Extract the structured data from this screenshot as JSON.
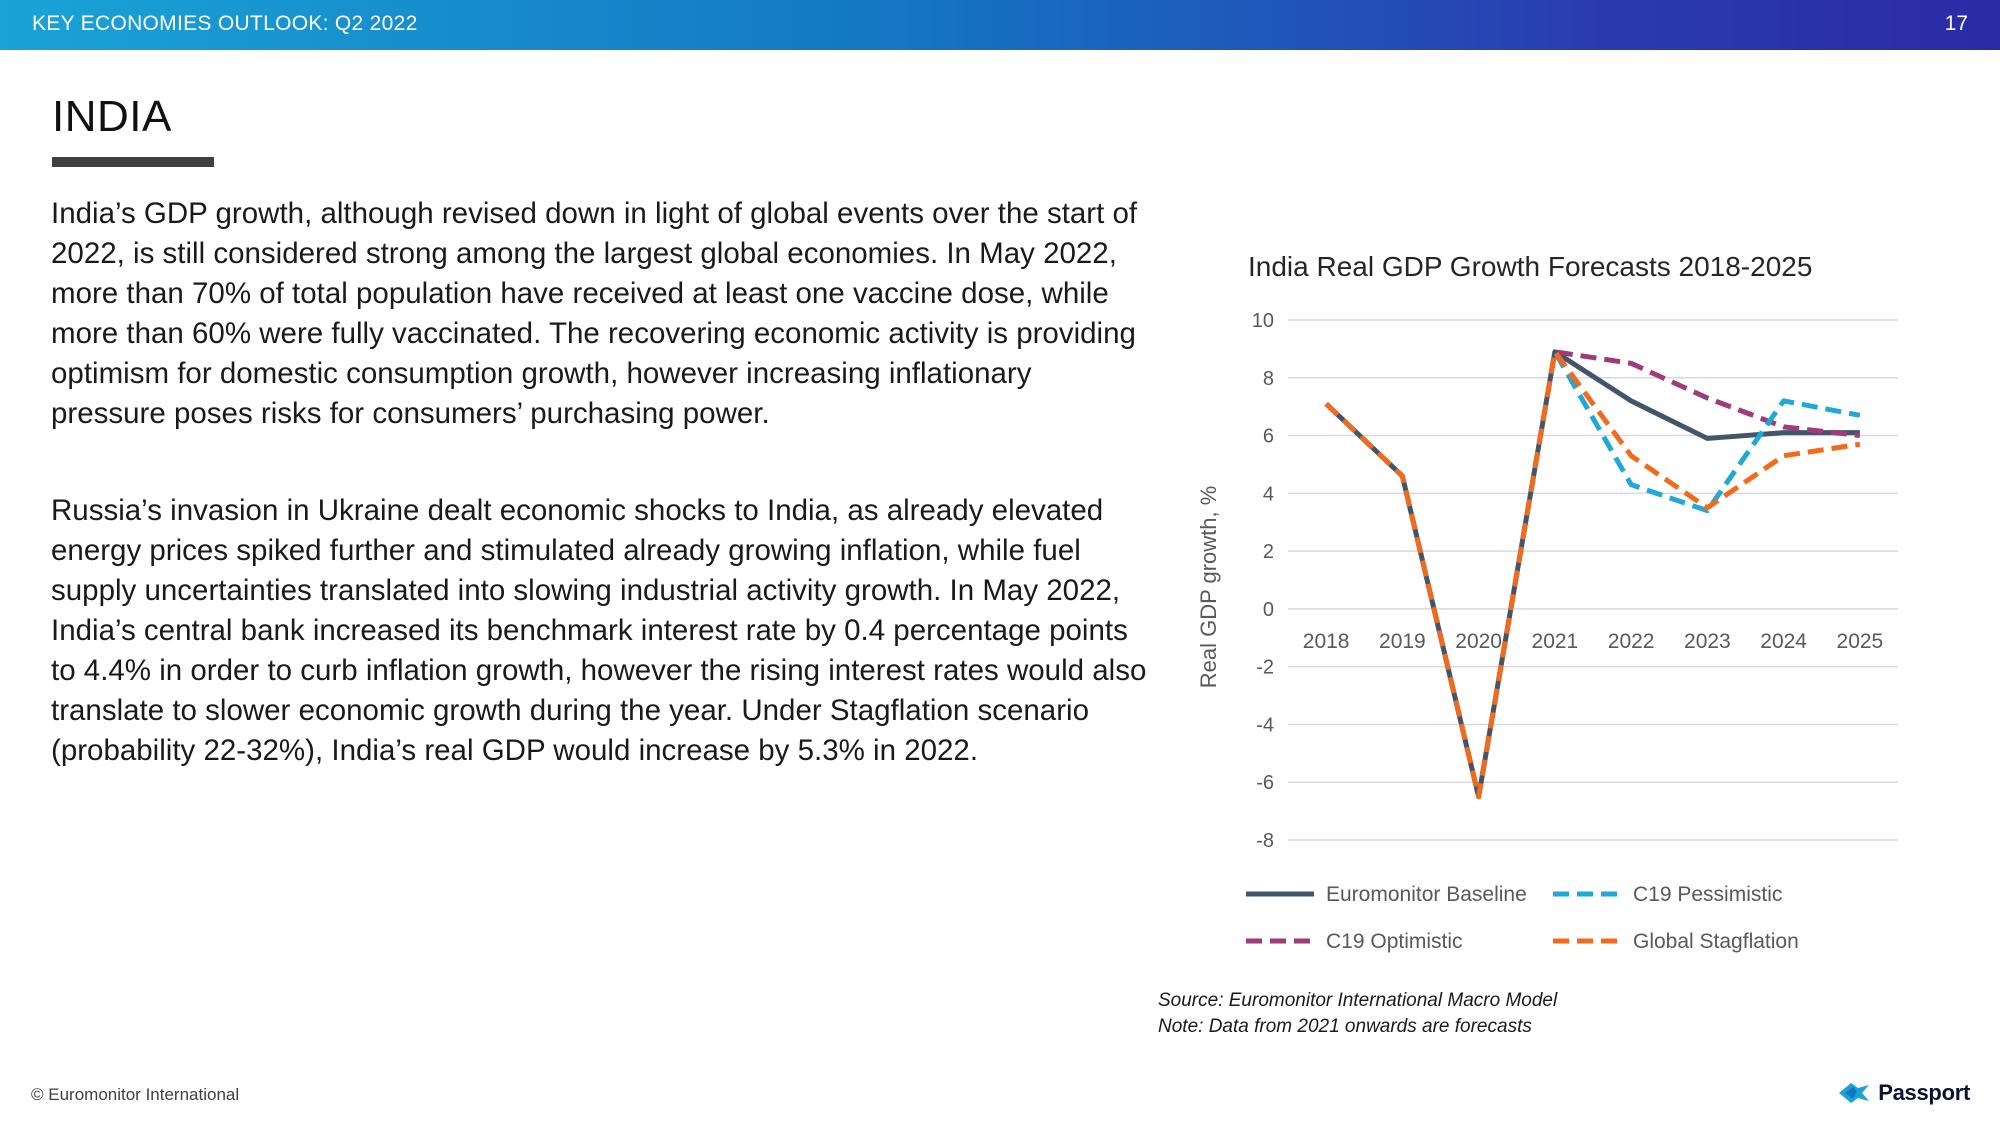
{
  "header": {
    "report_title": "KEY ECONOMIES OUTLOOK: Q2 2022",
    "page_number": "17",
    "bar_colors": [
      "#1aa3d6",
      "#2b2aa6"
    ]
  },
  "page": {
    "title": "INDIA",
    "paragraphs": [
      "India’s GDP growth, although revised down in light of global events over the start of 2022, is still considered strong among the largest global economies. In May 2022, more than 70% of total population have received at least one vaccine dose, while more than 60% were fully vaccinated. The recovering economic activity is providing optimism for domestic consumption growth, however increasing inflationary pressure poses risks for consumers’ purchasing power.",
      "Russia’s invasion in Ukraine dealt economic shocks to India, as already elevated energy prices spiked further and stimulated already growing inflation, while fuel supply uncertainties translated into slowing industrial activity growth. In May 2022, India’s central bank increased its benchmark interest rate by 0.4 percentage points to 4.4% in order to curb inflation growth, however the rising interest rates would also translate to slower economic growth during the year. Under Stagflation scenario (probability 22-32%), India’s real GDP would increase by 5.3% in 2022."
    ]
  },
  "chart_data": {
    "type": "line",
    "title": "India Real GDP Growth Forecasts 2018-2025",
    "xlabel": "",
    "ylabel": "Real GDP growth, %",
    "categories": [
      "2018",
      "2019",
      "2020",
      "2021",
      "2022",
      "2023",
      "2024",
      "2025"
    ],
    "ylim": [
      -8,
      10
    ],
    "yticks": [
      10,
      8,
      6,
      4,
      2,
      0,
      -2,
      -4,
      -6,
      -8
    ],
    "grid": true,
    "legend_position": "bottom",
    "series": [
      {
        "name": "Euromonitor Baseline",
        "color": "#44546a",
        "dash": "solid",
        "values": [
          7.1,
          4.6,
          -6.5,
          8.9,
          7.2,
          5.9,
          6.1,
          6.1
        ]
      },
      {
        "name": "C19 Pessimistic",
        "color": "#1fa8d8",
        "dash": "dashed",
        "values": [
          7.1,
          4.6,
          -6.5,
          8.9,
          4.3,
          3.4,
          7.2,
          6.7
        ]
      },
      {
        "name": "C19 Optimistic",
        "color": "#9e3b78",
        "dash": "dashed",
        "values": [
          7.1,
          4.6,
          -6.5,
          8.9,
          8.5,
          7.3,
          6.3,
          6.0
        ]
      },
      {
        "name": "Global Stagflation",
        "color": "#f26a1b",
        "dash": "dashed",
        "values": [
          7.1,
          4.6,
          -6.5,
          8.9,
          5.3,
          3.5,
          5.3,
          5.7
        ]
      }
    ]
  },
  "notes": {
    "source": "Source: Euromonitor International Macro Model",
    "note": "Note: Data from 2021 onwards are forecasts"
  },
  "footer": {
    "copyright": "© Euromonitor International",
    "brand": "Passport",
    "brand_icon": "passport-logo-icon"
  }
}
